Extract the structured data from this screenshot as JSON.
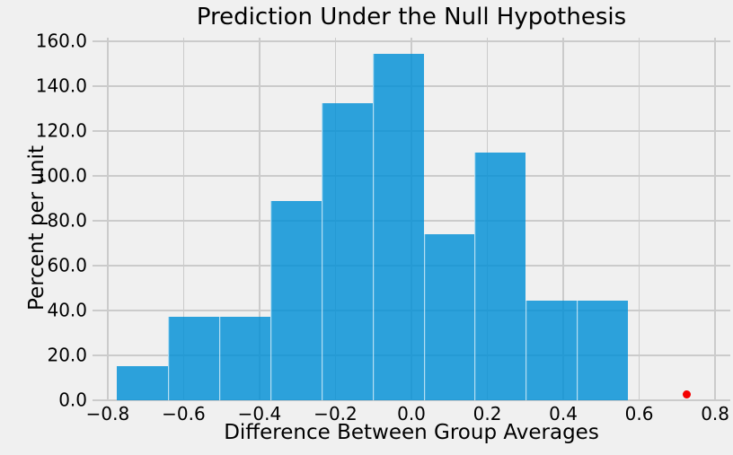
{
  "chart_data": {
    "type": "bar",
    "subtype": "histogram",
    "title": "Prediction Under the Null Hypothesis",
    "xlabel": "Difference Between Group Averages",
    "ylabel": "Percent per unit",
    "xlim": [
      -0.84,
      0.84
    ],
    "ylim": [
      0,
      161.6
    ],
    "grid": true,
    "legend": null,
    "x_ticks": [
      -0.8,
      -0.6,
      -0.4,
      -0.2,
      0.0,
      0.2,
      0.4,
      0.6,
      0.8
    ],
    "x_tick_labels": [
      "−0.8",
      "−0.6",
      "−0.4",
      "−0.2",
      "0.0",
      "0.2",
      "0.4",
      "0.6",
      "0.8"
    ],
    "y_ticks": [
      0,
      20,
      40,
      60,
      80,
      100,
      120,
      140,
      160
    ],
    "y_tick_labels": [
      "0.0",
      "20.0",
      "40.0",
      "60.0",
      "80.0",
      "100.0",
      "120.0",
      "140.0",
      "160.0"
    ],
    "bins": {
      "start": -0.775,
      "width": 0.1345,
      "count": 10
    },
    "bar_heights_percent_per_unit": [
      15.1,
      37.1,
      37.1,
      88.8,
      132.4,
      154.4,
      74.0,
      110.4,
      44.5,
      44.5
    ],
    "observed_statistic_dot": {
      "x": 0.725,
      "y": 0
    },
    "colors": {
      "bar_fill": "#008fd5",
      "bar_fill_apparent": "#2da0da",
      "bar_edge": "#ffffff",
      "dot": "#f40000",
      "background": "#f0f0f0",
      "grid": "#cbcbcb",
      "text": "#000000"
    }
  }
}
